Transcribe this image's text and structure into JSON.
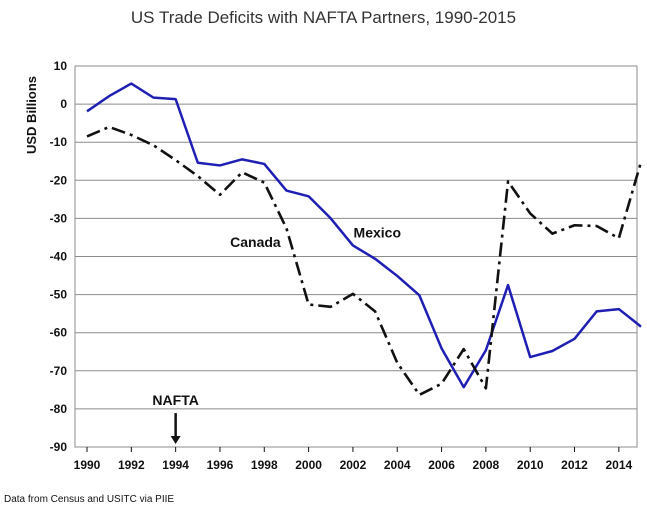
{
  "chart_data": {
    "type": "line",
    "title": "US Trade Deficits with NAFTA Partners, 1990-2015",
    "ylabel": "USD Billions",
    "xlabel": "",
    "xlim": [
      1990,
      2015
    ],
    "ylim": [
      -90,
      10
    ],
    "x_ticks": [
      1990,
      1992,
      1994,
      1996,
      1998,
      2000,
      2002,
      2004,
      2006,
      2008,
      2010,
      2012,
      2014
    ],
    "y_ticks": [
      10,
      0,
      -10,
      -20,
      -30,
      -40,
      -50,
      -60,
      -70,
      -80,
      -90
    ],
    "grid": "horizontal",
    "x": [
      1990,
      1991,
      1992,
      1993,
      1994,
      1995,
      1996,
      1997,
      1998,
      1999,
      2000,
      2001,
      2002,
      2003,
      2004,
      2005,
      2006,
      2007,
      2008,
      2009,
      2010,
      2011,
      2012,
      2013,
      2014,
      2015
    ],
    "series": [
      {
        "name": "Mexico",
        "color": "#1f1fb4",
        "style": "solid",
        "values": [
          -1.9,
          2.1,
          5.4,
          1.7,
          1.3,
          -15.4,
          -16.1,
          -14.5,
          -15.7,
          -22.7,
          -24.2,
          -30.0,
          -37.1,
          -40.6,
          -45.1,
          -50.2,
          -64.1,
          -74.3,
          -64.6,
          -47.5,
          -66.4,
          -64.8,
          -61.6,
          -54.4,
          -53.8,
          -58.4
        ]
      },
      {
        "name": "Canada",
        "color": "#111111",
        "style": "dash-dot",
        "values": [
          -8.5,
          -6.0,
          -8.1,
          -10.8,
          -14.7,
          -18.9,
          -23.8,
          -17.9,
          -20.6,
          -32.6,
          -52.6,
          -53.2,
          -49.8,
          -54.4,
          -67.9,
          -76.3,
          -73.4,
          -64.3,
          -74.6,
          -20.3,
          -28.7,
          -34.0,
          -31.8,
          -32.0,
          -35.2,
          -15.2
        ]
      }
    ],
    "annotations": [
      {
        "text": "Canada",
        "x": 1997.6,
        "y": -37.5
      },
      {
        "text": "Mexico",
        "x": 2003.1,
        "y": -35.0
      },
      {
        "text": "NAFTA",
        "x": 1994,
        "y": -79.0,
        "arrow_to_y": -90
      }
    ]
  },
  "source_note": "Data from Census and USITC via PIIE"
}
